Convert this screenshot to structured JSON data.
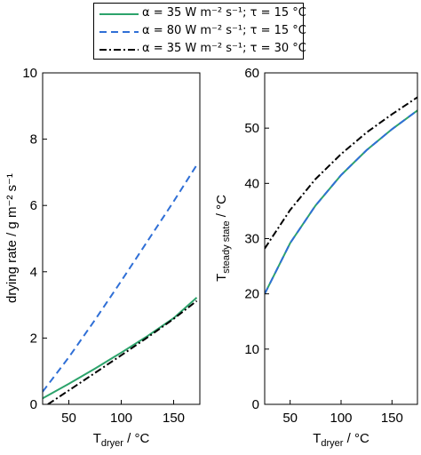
{
  "legend": [
    {
      "text": "α = 35 W m⁻² s⁻¹; τ = 15 °C",
      "color": "#2ca36b",
      "dash": "solid"
    },
    {
      "text": "α = 80 W m⁻² s⁻¹; τ = 15 °C",
      "color": "#2f6fd6",
      "dash": "dash"
    },
    {
      "text": "α = 35 W m⁻² s⁻¹; τ = 30 °C",
      "color": "#000000",
      "dash": "dashdot"
    }
  ],
  "chart_data": [
    {
      "type": "line",
      "xlabel": "T_dryer / °C",
      "ylabel": "drying rate / g m⁻² s⁻¹",
      "xlim": [
        25,
        175
      ],
      "ylim": [
        0,
        10
      ],
      "xticks": [
        50,
        100,
        150
      ],
      "yticks": [
        0,
        2,
        4,
        6,
        8,
        10
      ],
      "series": [
        {
          "name": "α = 35 W m⁻² s⁻¹; τ = 15 °C",
          "color": "#2ca36b",
          "dash": "solid",
          "x": [
            25,
            50,
            75,
            100,
            125,
            150,
            172
          ],
          "y": [
            0.18,
            0.62,
            1.08,
            1.56,
            2.06,
            2.6,
            3.22
          ]
        },
        {
          "name": "α = 80 W m⁻² s⁻¹; τ = 15 °C",
          "color": "#2f6fd6",
          "dash": "dash",
          "x": [
            25,
            50,
            75,
            100,
            125,
            150,
            172
          ],
          "y": [
            0.38,
            1.42,
            2.55,
            3.72,
            4.92,
            6.12,
            7.22
          ]
        },
        {
          "name": "α = 35 W m⁻² s⁻¹; τ = 30 °C",
          "color": "#000000",
          "dash": "dashdot",
          "x": [
            30,
            50,
            75,
            100,
            125,
            150,
            172
          ],
          "y": [
            0.0,
            0.42,
            0.95,
            1.48,
            2.02,
            2.58,
            3.12
          ]
        }
      ]
    },
    {
      "type": "line",
      "xlabel": "T_dryer / °C",
      "ylabel": "T_steady state / °C",
      "xlim": [
        25,
        175
      ],
      "ylim": [
        0,
        60
      ],
      "xticks": [
        50,
        100,
        150
      ],
      "yticks": [
        0,
        10,
        20,
        30,
        40,
        50,
        60
      ],
      "series": [
        {
          "name": "α = 35 W m⁻² s⁻¹; τ = 15 °C",
          "color": "#2ca36b",
          "dash": "solid",
          "x": [
            25,
            50,
            75,
            100,
            125,
            150,
            175
          ],
          "y": [
            20.0,
            29.2,
            36.0,
            41.5,
            46.0,
            49.8,
            53.2
          ]
        },
        {
          "name": "α = 80 W m⁻² s⁻¹; τ = 15 °C",
          "color": "#2f6fd6",
          "dash": "dash",
          "x": [
            25,
            50,
            75,
            100,
            125,
            150,
            175
          ],
          "y": [
            20.0,
            29.2,
            36.0,
            41.5,
            46.0,
            49.8,
            53.2
          ]
        },
        {
          "name": "α = 35 W m⁻² s⁻¹; τ = 30 °C",
          "color": "#000000",
          "dash": "dashdot",
          "x": [
            25,
            50,
            75,
            100,
            125,
            150,
            175
          ],
          "y": [
            28.2,
            35.2,
            40.8,
            45.3,
            49.2,
            52.5,
            55.6
          ]
        }
      ]
    }
  ]
}
